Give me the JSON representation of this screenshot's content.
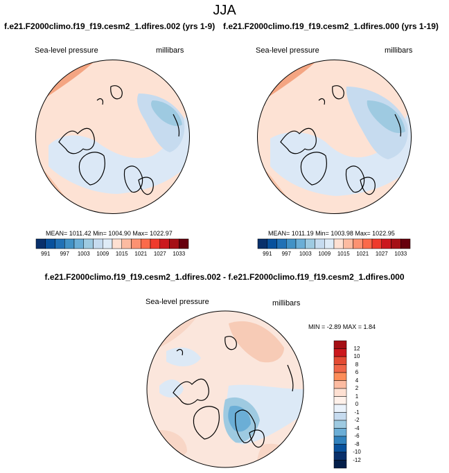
{
  "page": {
    "season": "JJA",
    "panel_left_title": "f.e21.F2000climo.f19_f19.cesm2_1.dfires.002 (yrs 1-9)",
    "panel_right_title": "f.e21.F2000climo.f19_f19.cesm2_1.dfires.000 (yrs 1-19)",
    "diff_title": "f.e21.F2000climo.f19_f19.cesm2_1.dfires.002 - f.e21.F2000climo.f19_f19.cesm2_1.dfires.000"
  },
  "chart_data": [
    {
      "type": "heatmap",
      "projection": "polar stereographic (north)",
      "variable": "Sea-level pressure",
      "units": "millibars",
      "stats_text": "MEAN= 1011.42   Min= 1004.90   Max= 1022.97",
      "mean": 1011.42,
      "min": 1004.9,
      "max": 1022.97,
      "colorbar_labels": [
        "991",
        "997",
        "1003",
        "1009",
        "1015",
        "1021",
        "1027",
        "1033"
      ],
      "colorbar_colors": [
        "#08306b",
        "#08519c",
        "#2171b5",
        "#4292c6",
        "#6baed6",
        "#9ecae1",
        "#c6dbef",
        "#deebf7",
        "#fee0d2",
        "#fcbba1",
        "#fc9272",
        "#fb6a4a",
        "#ef3b2c",
        "#cb181d",
        "#a50f15",
        "#67000d"
      ]
    },
    {
      "type": "heatmap",
      "projection": "polar stereographic (north)",
      "variable": "Sea-level pressure",
      "units": "millibars",
      "stats_text": "MEAN= 1011.19   Min= 1003.98   Max= 1022.95",
      "mean": 1011.19,
      "min": 1003.98,
      "max": 1022.95,
      "colorbar_labels": [
        "991",
        "997",
        "1003",
        "1009",
        "1015",
        "1021",
        "1027",
        "1033"
      ],
      "colorbar_colors": [
        "#08306b",
        "#08519c",
        "#2171b5",
        "#4292c6",
        "#6baed6",
        "#9ecae1",
        "#c6dbef",
        "#deebf7",
        "#fee0d2",
        "#fcbba1",
        "#fc9272",
        "#fb6a4a",
        "#ef3b2c",
        "#cb181d",
        "#a50f15",
        "#67000d"
      ]
    },
    {
      "type": "heatmap",
      "projection": "polar stereographic (north)",
      "variable": "Sea-level pressure",
      "units": "millibars",
      "stats_text": "MIN = -2.89  MAX =  1.84",
      "min": -2.89,
      "max": 1.84,
      "colorbar_labels": [
        "12",
        "10",
        "8",
        "6",
        "4",
        "2",
        "1",
        "0",
        "-1",
        "-2",
        "-4",
        "-6",
        "-8",
        "-10",
        "-12"
      ],
      "colorbar_colors": [
        "#a50f15",
        "#cb181d",
        "#e34a33",
        "#ef6548",
        "#fc8d59",
        "#fcbba1",
        "#fee0d2",
        "#fff1ea",
        "#eaf2fb",
        "#c6dbef",
        "#9ecae1",
        "#6baed6",
        "#3182bd",
        "#08519c",
        "#08306b",
        "#041f4a"
      ]
    }
  ]
}
